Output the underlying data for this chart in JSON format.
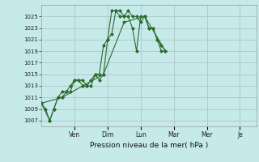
{
  "background_color": "#c6eaea",
  "grid_color": "#b0cccc",
  "line_color": "#2d6a2d",
  "marker_color": "#2d6a2d",
  "xlabel": "Pression niveau de la mer( hPa )",
  "ylim": [
    1006,
    1027
  ],
  "yticks": [
    1007,
    1009,
    1011,
    1013,
    1015,
    1017,
    1019,
    1021,
    1023,
    1025
  ],
  "xtick_positions": [
    2,
    4,
    6,
    8,
    10,
    12
  ],
  "xtick_labels": [
    "Ven",
    "Dim",
    "Lun",
    "Mar",
    "Mer",
    "Je"
  ],
  "xlim": [
    0,
    13
  ],
  "series1_x": [
    0.0,
    0.25,
    0.5,
    0.75,
    1.0,
    1.25,
    1.5,
    1.75,
    2.0,
    2.25,
    2.5,
    2.75,
    3.0,
    3.25,
    3.5,
    3.75,
    4.0,
    4.25,
    4.5,
    4.75,
    5.0,
    5.25,
    5.5,
    5.75,
    6.0,
    6.25,
    6.5,
    6.75,
    7.0,
    7.25,
    7.5
  ],
  "series1_y": [
    1010,
    1009,
    1007,
    1009,
    1011,
    1012,
    1012,
    1013,
    1014,
    1014,
    1014,
    1013,
    1013,
    1015,
    1015,
    1020,
    1021,
    1026,
    1026,
    1025,
    1025,
    1025,
    1023,
    1019,
    1025,
    1025,
    1023,
    1023,
    1021,
    1019,
    1019
  ],
  "series2_x": [
    0.0,
    0.5,
    0.75,
    1.0,
    1.25,
    1.5,
    1.75,
    2.0,
    2.25,
    2.5,
    2.75,
    3.0,
    3.25,
    3.5,
    3.75,
    4.0,
    4.25,
    4.5,
    4.75,
    5.0,
    5.25,
    5.5,
    5.75,
    6.0,
    6.25,
    6.5,
    6.75,
    7.0,
    7.25,
    7.5
  ],
  "series2_y": [
    1010,
    1007,
    1009,
    1011,
    1011,
    1012,
    1012,
    1014,
    1014,
    1013,
    1013,
    1014,
    1015,
    1014,
    1015,
    1021,
    1022,
    1026,
    1026,
    1025,
    1026,
    1025,
    1025,
    1024,
    1025,
    1023,
    1023,
    1021,
    1020,
    1019
  ],
  "series3_x": [
    0.0,
    1.25,
    2.5,
    3.75,
    5.0,
    6.25,
    7.5
  ],
  "series3_y": [
    1010,
    1011,
    1013,
    1015,
    1024,
    1025,
    1019
  ]
}
